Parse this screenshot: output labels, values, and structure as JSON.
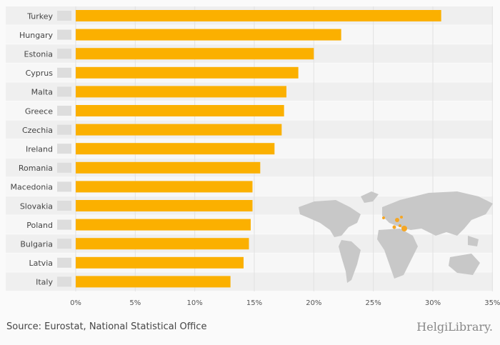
{
  "chart_data": {
    "type": "bar",
    "orientation": "horizontal",
    "categories": [
      "Turkey",
      "Hungary",
      "Estonia",
      "Cyprus",
      "Malta",
      "Greece",
      "Czechia",
      "Ireland",
      "Romania",
      "Macedonia",
      "Slovakia",
      "Poland",
      "Bulgaria",
      "Latvia",
      "Italy"
    ],
    "values": [
      30.7,
      22.3,
      20.0,
      18.7,
      17.7,
      17.5,
      17.3,
      16.7,
      15.5,
      14.85,
      14.85,
      14.7,
      14.55,
      14.1,
      13.0
    ],
    "xlim": [
      0,
      35
    ],
    "xticks": [
      "0%",
      "5%",
      "10%",
      "15%",
      "20%",
      "25%",
      "30%",
      "35%"
    ],
    "grid": true,
    "bar_color": "#fbb000"
  },
  "footer": {
    "source": "Source: Eurostat, National Statistical Office",
    "logo": "HelgiLibrary."
  }
}
